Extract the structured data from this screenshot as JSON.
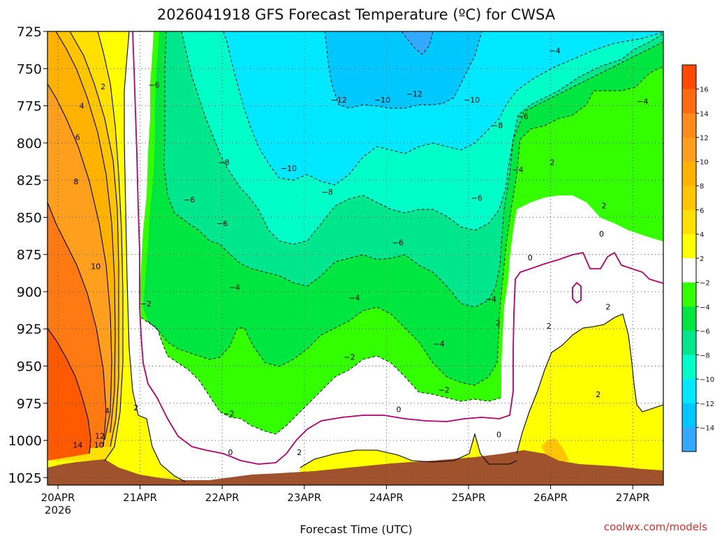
{
  "chart_data": {
    "type": "heatmap",
    "title": "2026041918 GFS Forecast Temperature (ºC) for CWSA",
    "xlabel": "Forecast Time (UTC)",
    "ylabel": "",
    "credit": "coolwx.com/models",
    "y_axis": {
      "ticks": [
        725,
        750,
        775,
        800,
        825,
        850,
        875,
        900,
        925,
        950,
        975,
        1000,
        1025
      ],
      "range": [
        725,
        1030
      ]
    },
    "x_axis": {
      "range_days": [
        0,
        7.5
      ],
      "ticks": [
        {
          "day": 0.0,
          "label": "20APR",
          "sub": "2026"
        },
        {
          "day": 1.0,
          "label": "21APR"
        },
        {
          "day": 2.0,
          "label": "22APR"
        },
        {
          "day": 3.0,
          "label": "23APR"
        },
        {
          "day": 4.0,
          "label": "24APR"
        },
        {
          "day": 5.0,
          "label": "25APR"
        },
        {
          "day": 6.0,
          "label": "26APR"
        },
        {
          "day": 7.0,
          "label": "27APR"
        }
      ]
    },
    "colorbar": {
      "labels": [
        "16",
        "14",
        "12",
        "10",
        "8",
        "6",
        "4",
        "2",
        "−2",
        "−4",
        "−6",
        "−8",
        "−10",
        "−12",
        "−14"
      ],
      "colors": [
        "#ff4a00",
        "#ff6a10",
        "#ff8c1a",
        "#ff9f1e",
        "#ffb300",
        "#ffc600",
        "#ffe000",
        "#ffff00",
        "#ffffff",
        "#33ff00",
        "#00e640",
        "#00e68c",
        "#00ffc8",
        "#00e8ff",
        "#00c8ff",
        "#33aaff"
      ]
    },
    "contour_labels": [
      {
        "text": "2",
        "day": 0.55,
        "p": 762
      },
      {
        "text": "4",
        "day": 0.29,
        "p": 775
      },
      {
        "text": "6",
        "day": 0.24,
        "p": 796
      },
      {
        "text": "8",
        "day": 0.22,
        "p": 826
      },
      {
        "text": "10",
        "day": 0.46,
        "p": 883
      },
      {
        "text": "14",
        "day": 0.24,
        "p": 1003
      },
      {
        "text": "12",
        "day": 0.51,
        "p": 997
      },
      {
        "text": "10",
        "day": 0.5,
        "p": 1003
      },
      {
        "text": "4",
        "day": 0.6,
        "p": 980
      },
      {
        "text": "2",
        "day": 0.95,
        "p": 978
      },
      {
        "text": "−6",
        "day": 1.17,
        "p": 761
      },
      {
        "text": "−6",
        "day": 1.6,
        "p": 838
      },
      {
        "text": "−2",
        "day": 1.07,
        "p": 908
      },
      {
        "text": "−8",
        "day": 2.02,
        "p": 813
      },
      {
        "text": "−6",
        "day": 2.0,
        "p": 854
      },
      {
        "text": "−4",
        "day": 2.15,
        "p": 897
      },
      {
        "text": "−2",
        "day": 2.08,
        "p": 982
      },
      {
        "text": "0",
        "day": 2.1,
        "p": 1008
      },
      {
        "text": "−10",
        "day": 2.81,
        "p": 817
      },
      {
        "text": "−12",
        "day": 3.42,
        "p": 771
      },
      {
        "text": "−10",
        "day": 3.95,
        "p": 771
      },
      {
        "text": "−12",
        "day": 4.34,
        "p": 767
      },
      {
        "text": "−8",
        "day": 3.28,
        "p": 833
      },
      {
        "text": "−6",
        "day": 4.14,
        "p": 867
      },
      {
        "text": "−4",
        "day": 3.61,
        "p": 904
      },
      {
        "text": "−2",
        "day": 3.55,
        "p": 944
      },
      {
        "text": "0",
        "day": 4.15,
        "p": 979
      },
      {
        "text": "2",
        "day": 2.94,
        "p": 1008
      },
      {
        "text": "−10",
        "day": 5.04,
        "p": 771
      },
      {
        "text": "−8",
        "day": 5.35,
        "p": 788
      },
      {
        "text": "−6",
        "day": 5.1,
        "p": 837
      },
      {
        "text": "−4",
        "day": 4.64,
        "p": 935
      },
      {
        "text": "−2",
        "day": 4.7,
        "p": 966
      },
      {
        "text": "0",
        "day": 5.37,
        "p": 996
      },
      {
        "text": "−4",
        "day": 5.27,
        "p": 905
      },
      {
        "text": "2",
        "day": 5.36,
        "p": 921
      },
      {
        "text": "−6",
        "day": 5.66,
        "p": 782
      },
      {
        "text": "−4",
        "day": 5.6,
        "p": 818
      },
      {
        "text": "−4",
        "day": 6.05,
        "p": 738
      },
      {
        "text": "2",
        "day": 6.02,
        "p": 813
      },
      {
        "text": "0",
        "day": 5.75,
        "p": 877
      },
      {
        "text": "0",
        "day": 6.62,
        "p": 861
      },
      {
        "text": "2",
        "day": 6.65,
        "p": 842
      },
      {
        "text": "2",
        "day": 5.98,
        "p": 923
      },
      {
        "text": "2",
        "day": 6.7,
        "p": 910
      },
      {
        "text": "2",
        "day": 6.58,
        "p": 969
      },
      {
        "text": "−4",
        "day": 7.12,
        "p": 772
      }
    ]
  }
}
